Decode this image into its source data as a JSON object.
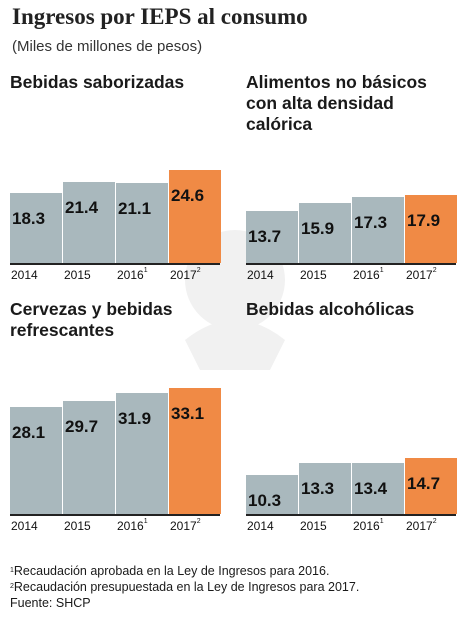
{
  "title": "Ingresos por IEPS al consumo",
  "subtitle": "(Miles de millones de pesos)",
  "chart_data": [
    {
      "type": "bar",
      "title": "Bebidas saborizadas",
      "categories": [
        "2014",
        "2015",
        "2016",
        "2017"
      ],
      "category_marks": [
        "",
        "",
        "1",
        "2"
      ],
      "values": [
        18.3,
        21.4,
        21.1,
        24.6
      ],
      "value_labels": [
        "18.3",
        "21.4",
        "21.1",
        "24.6"
      ],
      "highlight_index": 3,
      "ylim": [
        0,
        35
      ]
    },
    {
      "type": "bar",
      "title": "Alimentos no básicos con alta densidad calórica",
      "categories": [
        "2014",
        "2015",
        "2016",
        "2017"
      ],
      "category_marks": [
        "",
        "",
        "1",
        "2"
      ],
      "values": [
        13.7,
        15.9,
        17.3,
        17.9
      ],
      "value_labels": [
        "13.7",
        "15.9",
        "17.3",
        "17.9"
      ],
      "highlight_index": 3,
      "ylim": [
        0,
        35
      ]
    },
    {
      "type": "bar",
      "title": "Cervezas y bebidas refrescantes",
      "categories": [
        "2014",
        "2015",
        "2016",
        "2017"
      ],
      "category_marks": [
        "",
        "",
        "1",
        "2"
      ],
      "values": [
        28.1,
        29.7,
        31.9,
        33.1
      ],
      "value_labels": [
        "28.1",
        "29.7",
        "31.9",
        "33.1"
      ],
      "highlight_index": 3,
      "ylim": [
        0,
        35
      ]
    },
    {
      "type": "bar",
      "title": "Bebidas alcohólicas",
      "categories": [
        "2014",
        "2015",
        "2016",
        "2017"
      ],
      "category_marks": [
        "",
        "",
        "1",
        "2"
      ],
      "values": [
        10.3,
        13.3,
        13.4,
        14.7
      ],
      "value_labels": [
        "10.3",
        "13.3",
        "13.4",
        "14.7"
      ],
      "highlight_index": 3,
      "ylim": [
        0,
        35
      ]
    }
  ],
  "colors": {
    "bar": "#a9b8bd",
    "highlight": "#f08a45",
    "baseline": "#222222"
  },
  "notes": [
    {
      "mark": "1",
      "text": "Recaudación aprobada en la Ley de Ingresos para 2016."
    },
    {
      "mark": "2",
      "text": "Recaudación presupuestada en la Ley de Ingresos para 2017."
    },
    {
      "mark": "",
      "text": "Fuente: SHCP"
    }
  ]
}
